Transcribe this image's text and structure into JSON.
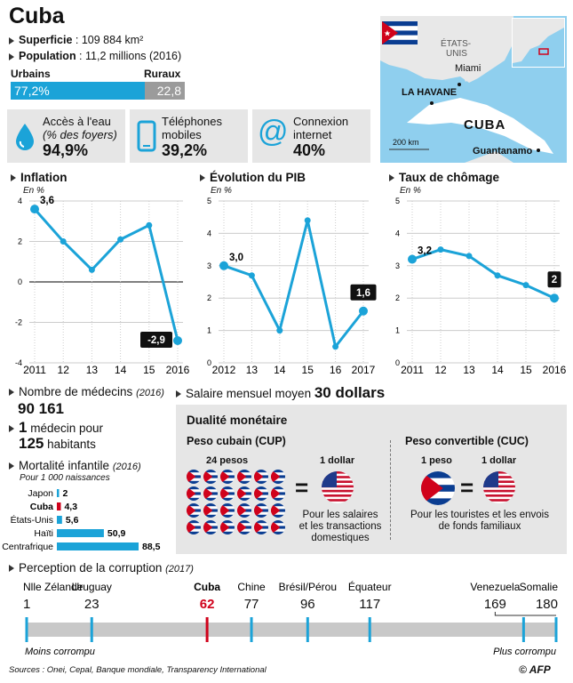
{
  "title": "Cuba",
  "facts": {
    "superficie_label": "Superficie",
    "superficie_value": " : 109 884 km²",
    "population_label": "Population",
    "population_value": " : 11,2 millions (2016)"
  },
  "urban": {
    "urbains_label": "Urbains",
    "ruraux_label": "Ruraux",
    "urbains_value": "77,2%",
    "ruraux_value": "22,8",
    "urbains_pct": 77.2,
    "urbains_color": "#1ba3d8",
    "ruraux_color": "#9b9b9b"
  },
  "stats": [
    {
      "icon": "water-drop-icon",
      "line1": "Accès à l'eau",
      "line2": "(% des foyers)",
      "value": "94,9%"
    },
    {
      "icon": "mobile-phone-icon",
      "line1": "Téléphones",
      "line2": "mobiles",
      "value": "39,2%"
    },
    {
      "icon": "at-sign-icon",
      "line1": "Connexion",
      "line2": "internet",
      "value": "40%"
    }
  ],
  "map": {
    "usa": "ÉTATS-",
    "usa2": "UNIS",
    "miami": "Miami",
    "havane": "LA HAVANE",
    "cuba": "CUBA",
    "guantanamo": "Guantanamo",
    "scale": "200 km"
  },
  "chart_data": [
    {
      "type": "line",
      "title": "Inflation",
      "ylabel": "En %",
      "x": [
        "2011",
        "12",
        "13",
        "14",
        "15",
        "2016"
      ],
      "values": [
        3.6,
        2.0,
        0.6,
        2.1,
        2.8,
        -2.9
      ],
      "ylim": [
        -4,
        4
      ],
      "yticks": [
        "-4",
        "-2",
        "0",
        "2",
        "4"
      ],
      "labels": [
        {
          "i": 0,
          "text": "3,6",
          "boxed": false
        },
        {
          "i": 5,
          "text": "-2,9",
          "boxed": true
        }
      ]
    },
    {
      "type": "line",
      "title": "Évolution du PIB",
      "ylabel": "En %",
      "x": [
        "2012",
        "13",
        "14",
        "15",
        "16",
        "2017"
      ],
      "values": [
        3.0,
        2.7,
        1.0,
        4.4,
        0.5,
        1.6
      ],
      "ylim": [
        0,
        5
      ],
      "yticks": [
        "0",
        "1",
        "2",
        "3",
        "4",
        "5"
      ],
      "labels": [
        {
          "i": 0,
          "text": "3,0",
          "boxed": false
        },
        {
          "i": 5,
          "text": "1,6",
          "boxed": true
        }
      ]
    },
    {
      "type": "line",
      "title": "Taux de chômage",
      "ylabel": "En %",
      "x": [
        "2011",
        "12",
        "13",
        "14",
        "15",
        "2016"
      ],
      "values": [
        3.2,
        3.5,
        3.3,
        2.7,
        2.4,
        2.0
      ],
      "ylim": [
        0,
        5
      ],
      "yticks": [
        "0",
        "1",
        "2",
        "3",
        "4",
        "5"
      ],
      "labels": [
        {
          "i": 0,
          "text": "3,2",
          "boxed": false
        },
        {
          "i": 5,
          "text": "2",
          "boxed": true
        }
      ]
    },
    {
      "type": "bar",
      "title": "Mortalité infantile",
      "title_suffix": "(2016)",
      "subtitle": "Pour 1 000 naissances",
      "categories": [
        "Japon",
        "Cuba",
        "États-Unis",
        "Haïti",
        "Centrafrique"
      ],
      "values": [
        2,
        4.3,
        5.6,
        50.9,
        88.5
      ],
      "value_labels": [
        "2",
        "4,3",
        "5,6",
        "50,9",
        "88,5"
      ],
      "highlight": "Cuba"
    },
    {
      "type": "scale",
      "title": "Perception de la corruption",
      "title_suffix": "(2017)",
      "xlim": [
        1,
        180
      ],
      "countries": [
        {
          "name": "Nlle Zélande",
          "rank": 1,
          "label": "1"
        },
        {
          "name": "Uruguay",
          "rank": 23,
          "label": "23"
        },
        {
          "name": "Cuba",
          "rank": 62,
          "label": "62"
        },
        {
          "name": "Chine",
          "rank": 77,
          "label": "77"
        },
        {
          "name": "Brésil/Pérou",
          "rank": 96,
          "label": "96"
        },
        {
          "name": "Équateur",
          "rank": 117,
          "label": "117"
        },
        {
          "name": "Venezuela",
          "rank": 169,
          "label": "169"
        },
        {
          "name": "Somalie",
          "rank": 180,
          "label": "180"
        }
      ],
      "left_label": "Moins corrompu",
      "right_label": "Plus corrompu"
    }
  ],
  "medecins": {
    "label": "Nombre de médecins",
    "year": "(2016)",
    "value": "90 161",
    "ratio_one": "1",
    "ratio_text": " médecin pour",
    "ratio_num": "125",
    "ratio_tail": " habitants"
  },
  "salaire": {
    "label": "Salaire mensuel moyen ",
    "value": "30 dollars"
  },
  "dualite": {
    "title": "Dualité monétaire",
    "cup_title": "Peso cubain (CUP)",
    "cup_amount": "24 pesos",
    "cup_dollar": "1 dollar",
    "cup_desc": [
      "Pour les salaires",
      "et les transactions",
      "domestiques"
    ],
    "cuc_title": "Peso convertible (CUC)",
    "cuc_amount": "1 peso",
    "cuc_dollar": "1 dollar",
    "cuc_desc": [
      "Pour les touristes et les envois",
      "de fonds familiaux"
    ],
    "equals": "="
  },
  "sources": "Sources : Onei, Cepal, Banque mondiale, Transparency International",
  "credit": "© AFP",
  "colors": {
    "accent": "#1ba3d8",
    "cuba": "#d0021b",
    "panel": "#e6e6e6"
  }
}
